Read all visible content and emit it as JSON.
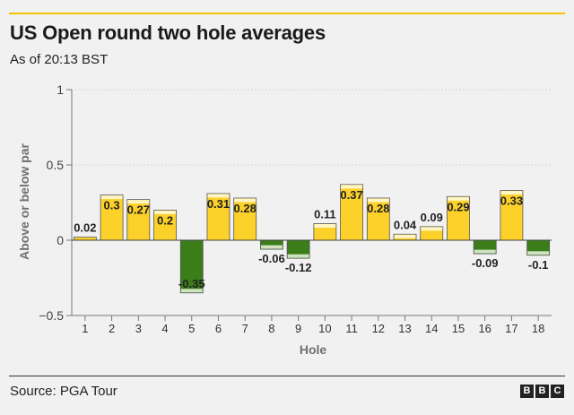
{
  "header": {
    "title": "US Open round two hole averages",
    "subtitle": "As of 20:13 BST"
  },
  "footer": {
    "source": "Source: PGA Tour",
    "logo_letters": [
      "B",
      "B",
      "C"
    ]
  },
  "chart_data": {
    "type": "bar",
    "title": "US Open round two hole averages",
    "subtitle": "As of 20:13 BST",
    "xlabel": "Hole",
    "ylabel": "Above or below par",
    "ylim": [
      -0.5,
      1
    ],
    "yticks": [
      "1",
      "0.5",
      "0",
      "−0.5"
    ],
    "ytick_values": [
      1,
      0.5,
      0,
      -0.5
    ],
    "categories": [
      "1",
      "2",
      "3",
      "4",
      "5",
      "6",
      "7",
      "8",
      "9",
      "10",
      "11",
      "12",
      "13",
      "14",
      "15",
      "16",
      "17",
      "18"
    ],
    "values": [
      0.02,
      0.3,
      0.27,
      0.2,
      -0.35,
      0.31,
      0.28,
      -0.06,
      -0.12,
      0.11,
      0.37,
      0.28,
      0.04,
      0.09,
      0.29,
      -0.09,
      0.33,
      -0.1
    ],
    "data_labels": [
      "0.02",
      "0.3",
      "0.27",
      "0.2",
      "-0.35",
      "0.31",
      "0.28",
      "-0.06",
      "-0.12",
      "0.11",
      "0.37",
      "0.28",
      "0.04",
      "0.09",
      "0.29",
      "-0.09",
      "0.33",
      "-0.1"
    ],
    "colors": {
      "positive": "#fcd12a",
      "positive_cap": "#fff6c4",
      "negative": "#3a7d19",
      "negative_cap": "#cfe3c2"
    },
    "grid": true,
    "legend": "none"
  }
}
